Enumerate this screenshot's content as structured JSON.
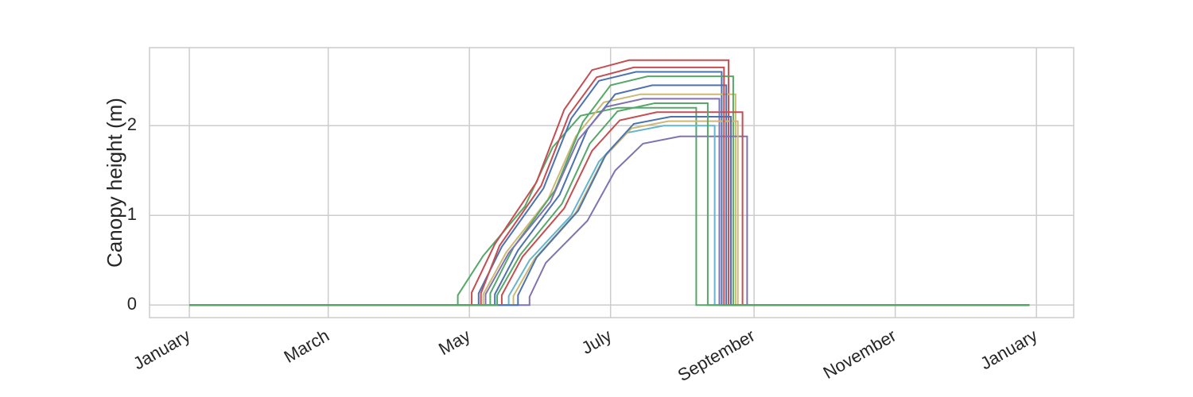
{
  "chart_data": {
    "type": "line",
    "y_label": "Canopy height (m)",
    "xlim": [
      -17.2,
      382.1
    ],
    "ylim": [
      -0.14,
      2.87
    ],
    "xticks": [
      {
        "value": 0,
        "label": "January"
      },
      {
        "value": 60,
        "label": "March"
      },
      {
        "value": 121,
        "label": "May"
      },
      {
        "value": 182,
        "label": "July"
      },
      {
        "value": 244,
        "label": "September"
      },
      {
        "value": 305,
        "label": "November"
      },
      {
        "value": 366,
        "label": "January"
      }
    ],
    "yticks": [
      0,
      1,
      2
    ],
    "grid": true,
    "series": [
      {
        "color": "#55a868",
        "x": [
          0,
          116,
          116,
          127,
          145,
          157,
          169,
          185,
          219,
          219,
          363
        ],
        "values": [
          0,
          0,
          0.11,
          0.55,
          1.1,
          1.76,
          2.11,
          2.2,
          2.2,
          0,
          0
        ]
      },
      {
        "color": "#c44e52",
        "x": [
          0,
          122,
          122,
          132,
          150,
          162,
          174,
          190,
          233,
          233,
          363
        ],
        "values": [
          0,
          0,
          0.14,
          0.68,
          1.37,
          2.18,
          2.62,
          2.73,
          2.73,
          0,
          0
        ]
      },
      {
        "color": "#4c72b0",
        "x": [
          0,
          125,
          125,
          135,
          153,
          165,
          177,
          193,
          230,
          230,
          363
        ],
        "values": [
          0,
          0,
          0.13,
          0.65,
          1.3,
          2.08,
          2.5,
          2.6,
          2.6,
          0,
          0
        ]
      },
      {
        "color": "#ccb974",
        "x": [
          0,
          127,
          127,
          137,
          155,
          167,
          179,
          195,
          236,
          236,
          363
        ],
        "values": [
          0,
          0,
          0.12,
          0.59,
          1.18,
          1.88,
          2.26,
          2.35,
          2.35,
          0,
          0
        ]
      },
      {
        "color": "#55a868",
        "x": [
          0,
          130,
          130,
          140,
          158,
          170,
          182,
          198,
          235,
          235,
          363
        ],
        "values": [
          0,
          0,
          0.13,
          0.64,
          1.28,
          2.04,
          2.45,
          2.55,
          2.55,
          0,
          0
        ]
      },
      {
        "color": "#4c72b0",
        "x": [
          0,
          132,
          132,
          142,
          160,
          172,
          184,
          200,
          232,
          232,
          363
        ],
        "values": [
          0,
          0,
          0.12,
          0.61,
          1.23,
          1.96,
          2.35,
          2.45,
          2.45,
          0,
          0
        ]
      },
      {
        "color": "#8172b2",
        "x": [
          0,
          147,
          147,
          154,
          172,
          184,
          196,
          212,
          241,
          241,
          363
        ],
        "values": [
          0,
          0,
          0.09,
          0.47,
          0.94,
          1.5,
          1.8,
          1.88,
          1.88,
          0,
          0
        ]
      },
      {
        "color": "#c44e52",
        "x": [
          0,
          135,
          135,
          144,
          162,
          174,
          186,
          202,
          239,
          239,
          363
        ],
        "values": [
          0,
          0,
          0.11,
          0.54,
          1.08,
          1.72,
          2.06,
          2.15,
          2.15,
          0,
          0
        ]
      },
      {
        "color": "#64b5cd",
        "x": [
          0,
          138,
          138,
          147,
          165,
          177,
          189,
          205,
          227,
          227,
          363
        ],
        "values": [
          0,
          0,
          0.1,
          0.5,
          1,
          1.6,
          1.92,
          2,
          2,
          0,
          0
        ]
      },
      {
        "color": "#8172b2",
        "x": [
          0,
          128,
          128,
          138,
          156,
          168,
          180,
          196,
          229,
          229,
          363
        ],
        "values": [
          0,
          0,
          0.12,
          0.58,
          1.15,
          1.84,
          2.21,
          2.3,
          2.3,
          0,
          0
        ]
      },
      {
        "color": "#ccb974",
        "x": [
          0,
          140,
          140,
          149,
          167,
          179,
          191,
          207,
          237,
          237,
          363
        ],
        "values": [
          0,
          0,
          0.1,
          0.51,
          1.03,
          1.64,
          1.97,
          2.05,
          2.05,
          0,
          0
        ]
      },
      {
        "color": "#4c72b0",
        "x": [
          0,
          142,
          142,
          150,
          168,
          180,
          192,
          208,
          234,
          234,
          363
        ],
        "values": [
          0,
          0,
          0.11,
          0.53,
          1.05,
          1.68,
          2.02,
          2.1,
          2.1,
          0,
          0
        ]
      },
      {
        "color": "#c44e52",
        "x": [
          0,
          126,
          126,
          134,
          152,
          164,
          176,
          192,
          231,
          231,
          363
        ],
        "values": [
          0,
          0,
          0.13,
          0.66,
          1.33,
          2.12,
          2.54,
          2.65,
          2.65,
          0,
          0
        ]
      },
      {
        "color": "#55a868",
        "x": [
          0,
          133,
          133,
          143,
          161,
          173,
          185,
          201,
          224,
          224,
          363
        ],
        "values": [
          0,
          0,
          0.11,
          0.56,
          1.13,
          1.8,
          2.16,
          2.25,
          2.25,
          0,
          0
        ]
      }
    ]
  }
}
